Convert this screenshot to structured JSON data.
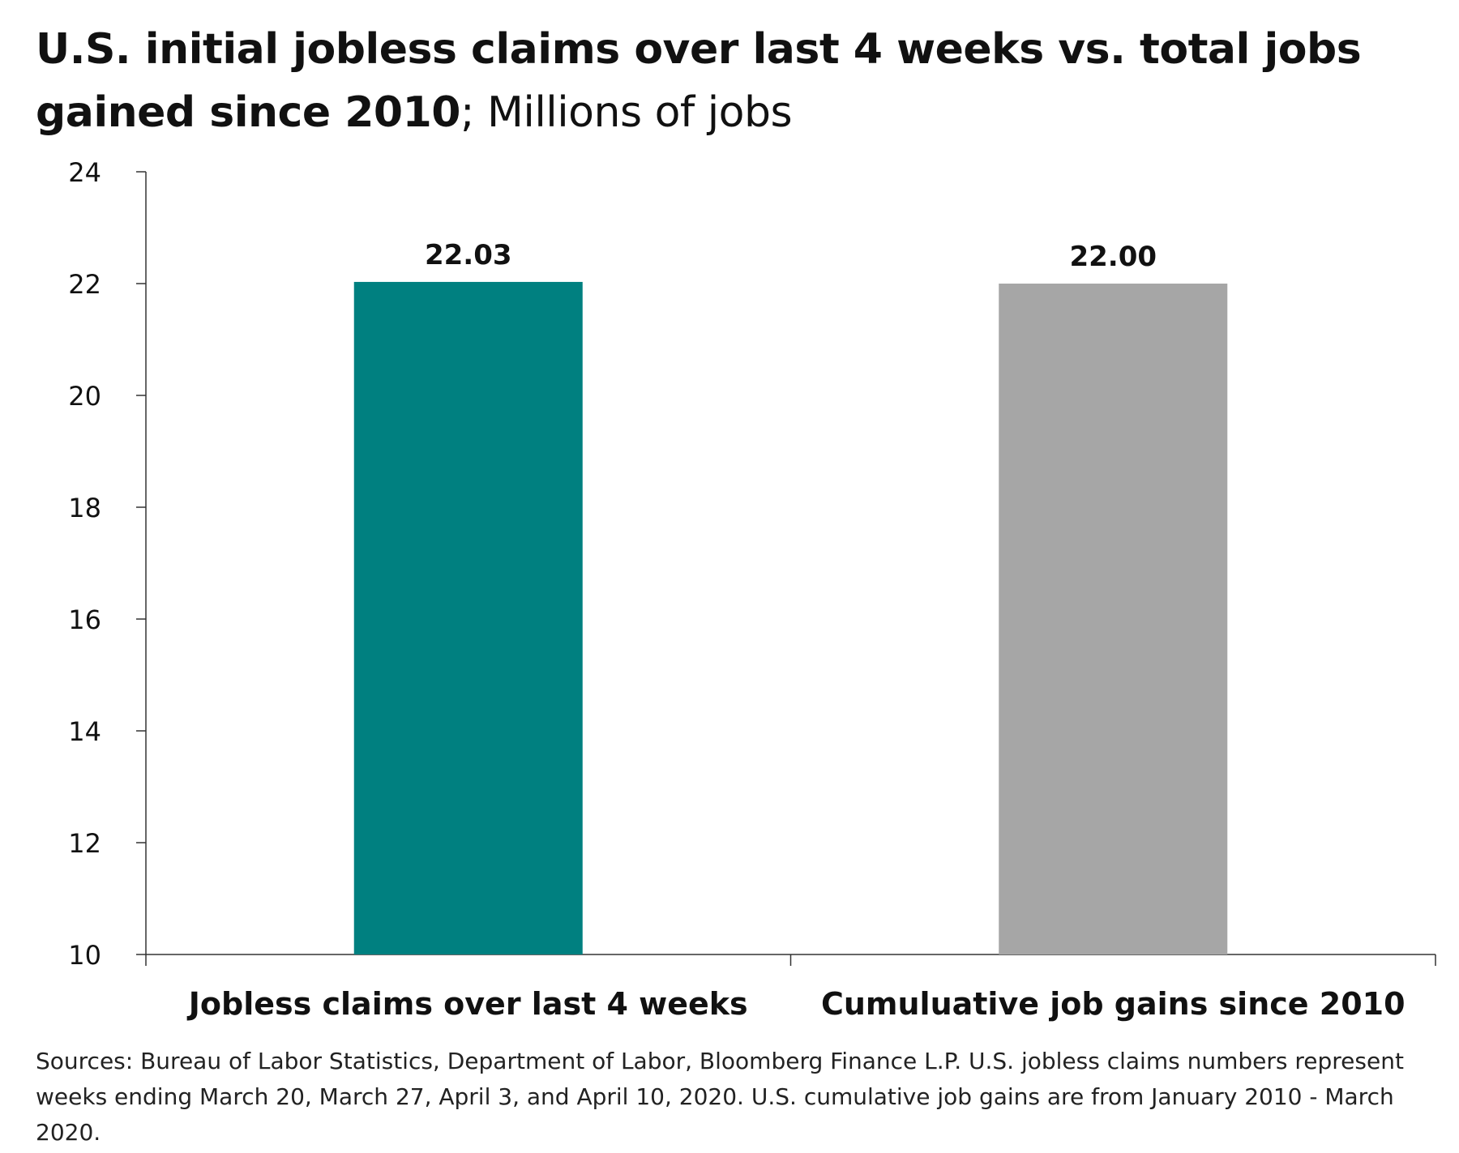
{
  "title": {
    "main": "U.S. initial jobless claims over last 4 weeks vs. total jobs gained since 2010",
    "sub": "; Millions of jobs"
  },
  "source_note": "Sources: Bureau of Labor Statistics, Department of Labor, Bloomberg Finance L.P. U.S. jobless claims numbers represent weeks ending March 20, March 27, April 3, and April 10, 2020. U.S. cumulative job gains are from January 2010 - March 2020.",
  "colors": {
    "bar_1": "#008080",
    "bar_2": "#A6A6A6",
    "axis": "#333333"
  },
  "chart_data": {
    "type": "bar",
    "categories": [
      "Jobless claims over last 4 weeks",
      "Cumuluative job gains since 2010"
    ],
    "values": [
      22.03,
      22.0
    ],
    "data_labels": [
      "22.03",
      "22.00"
    ],
    "bar_colors": [
      "#008080",
      "#A6A6A6"
    ],
    "ylim": [
      10,
      24
    ],
    "yticks": [
      10,
      12,
      14,
      16,
      18,
      20,
      22,
      24
    ],
    "xlabel": "",
    "ylabel": "",
    "grid": false,
    "legend": false
  }
}
